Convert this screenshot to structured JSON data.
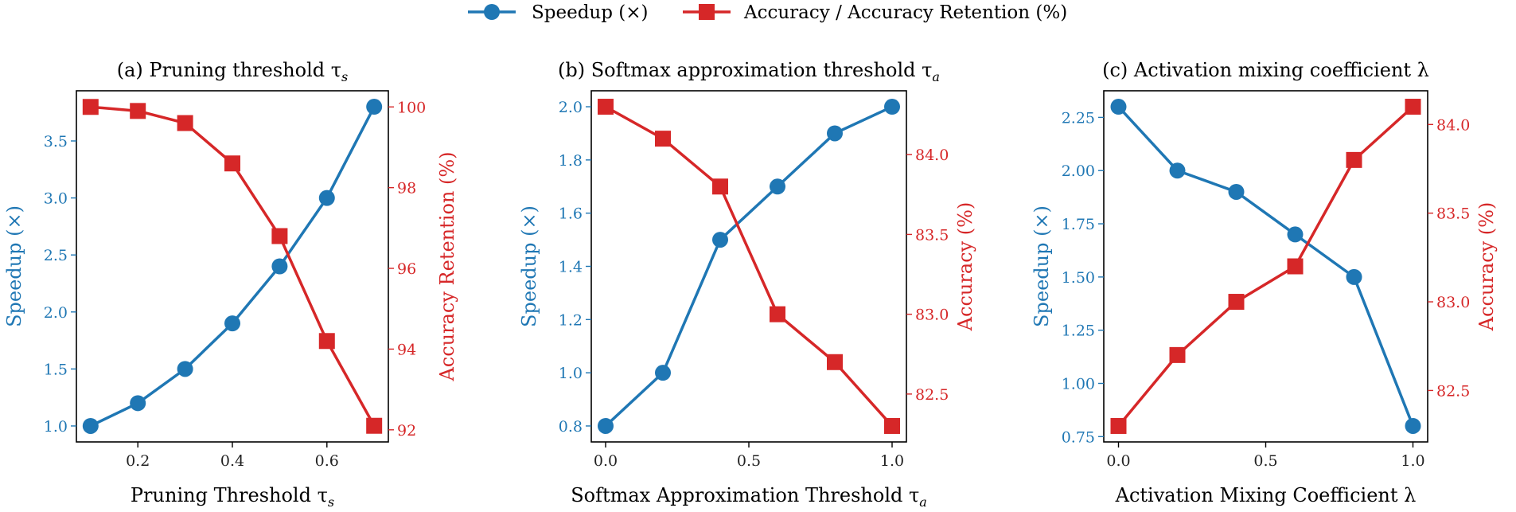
{
  "legend": {
    "entries": [
      {
        "label": "Speedup (×)",
        "color": "#1f77b4",
        "marker": "circle"
      },
      {
        "label": "Accuracy / Accuracy Retention (%)",
        "color": "#d62728",
        "marker": "square"
      }
    ]
  },
  "colors": {
    "speedup": "#1f77b4",
    "accuracy": "#d62728",
    "axis": "#000000"
  },
  "chart_data": [
    {
      "type": "line",
      "title": "(a) Pruning threshold τ",
      "title_sub": "s",
      "xlabel": "Pruning Threshold τ",
      "xlabel_sub": "s",
      "ylabel_left": "Speedup (×)",
      "ylabel_right": "Accuracy Retention (%)",
      "x": [
        0.1,
        0.2,
        0.3,
        0.4,
        0.5,
        0.6,
        0.7
      ],
      "series": [
        {
          "name": "Speedup (×)",
          "axis": "left",
          "values": [
            1.0,
            1.2,
            1.5,
            1.9,
            2.4,
            3.0,
            3.8
          ]
        },
        {
          "name": "Accuracy Retention (%)",
          "axis": "right",
          "values": [
            100.0,
            99.9,
            99.6,
            98.6,
            96.8,
            94.2,
            92.1
          ]
        }
      ],
      "xlim": [
        0.07,
        0.73
      ],
      "ylim_left": [
        0.86,
        3.94
      ],
      "ylim_right": [
        91.7,
        100.4
      ],
      "xticks": [
        {
          "v": 0.2,
          "label": "0.2"
        },
        {
          "v": 0.4,
          "label": "0.4"
        },
        {
          "v": 0.6,
          "label": "0.6"
        }
      ],
      "yticks_left": [
        {
          "v": 1.0,
          "label": "1.0"
        },
        {
          "v": 1.5,
          "label": "1.5"
        },
        {
          "v": 2.0,
          "label": "2.0"
        },
        {
          "v": 2.5,
          "label": "2.5"
        },
        {
          "v": 3.0,
          "label": "3.0"
        },
        {
          "v": 3.5,
          "label": "3.5"
        }
      ],
      "yticks_right": [
        {
          "v": 92,
          "label": "92"
        },
        {
          "v": 94,
          "label": "94"
        },
        {
          "v": 96,
          "label": "96"
        },
        {
          "v": 98,
          "label": "98"
        },
        {
          "v": 100,
          "label": "100"
        }
      ]
    },
    {
      "type": "line",
      "title": "(b) Softmax approximation threshold τ",
      "title_sub": "a",
      "xlabel": "Softmax Approximation Threshold τ",
      "xlabel_sub": "a",
      "ylabel_left": "Speedup (×)",
      "ylabel_right": "Accuracy (%)",
      "x": [
        0.0,
        0.2,
        0.4,
        0.6,
        0.8,
        1.0
      ],
      "series": [
        {
          "name": "Speedup (×)",
          "axis": "left",
          "values": [
            0.8,
            1.0,
            1.5,
            1.7,
            1.9,
            2.0
          ]
        },
        {
          "name": "Accuracy (%)",
          "axis": "right",
          "values": [
            84.3,
            84.1,
            83.8,
            83.0,
            82.7,
            82.3
          ]
        }
      ],
      "xlim": [
        -0.05,
        1.05
      ],
      "ylim_left": [
        0.74,
        2.06
      ],
      "ylim_right": [
        82.2,
        84.4
      ],
      "xticks": [
        {
          "v": 0.0,
          "label": "0.0"
        },
        {
          "v": 0.5,
          "label": "0.5"
        },
        {
          "v": 1.0,
          "label": "1.0"
        }
      ],
      "yticks_left": [
        {
          "v": 0.8,
          "label": "0.8"
        },
        {
          "v": 1.0,
          "label": "1.0"
        },
        {
          "v": 1.2,
          "label": "1.2"
        },
        {
          "v": 1.4,
          "label": "1.4"
        },
        {
          "v": 1.6,
          "label": "1.6"
        },
        {
          "v": 1.8,
          "label": "1.8"
        },
        {
          "v": 2.0,
          "label": "2.0"
        }
      ],
      "yticks_right": [
        {
          "v": 82.5,
          "label": "82.5"
        },
        {
          "v": 83.0,
          "label": "83.0"
        },
        {
          "v": 83.5,
          "label": "83.5"
        },
        {
          "v": 84.0,
          "label": "84.0"
        }
      ]
    },
    {
      "type": "line",
      "title": "(c) Activation mixing coefficient λ",
      "title_sub": "",
      "xlabel": "Activation Mixing Coefficient λ",
      "xlabel_sub": "",
      "ylabel_left": "Speedup (×)",
      "ylabel_right": "Accuracy (%)",
      "x": [
        0.0,
        0.2,
        0.4,
        0.6,
        0.8,
        1.0
      ],
      "series": [
        {
          "name": "Speedup (×)",
          "axis": "left",
          "values": [
            2.3,
            2.0,
            1.9,
            1.7,
            1.5,
            0.8
          ]
        },
        {
          "name": "Accuracy (%)",
          "axis": "right",
          "values": [
            82.3,
            82.7,
            83.0,
            83.2,
            83.8,
            84.1
          ]
        }
      ],
      "xlim": [
        -0.05,
        1.05
      ],
      "ylim_left": [
        0.725,
        2.375
      ],
      "ylim_right": [
        82.21,
        84.19
      ],
      "xticks": [
        {
          "v": 0.0,
          "label": "0.0"
        },
        {
          "v": 0.5,
          "label": "0.5"
        },
        {
          "v": 1.0,
          "label": "1.0"
        }
      ],
      "yticks_left": [
        {
          "v": 0.75,
          "label": "0.75"
        },
        {
          "v": 1.0,
          "label": "1.00"
        },
        {
          "v": 1.25,
          "label": "1.25"
        },
        {
          "v": 1.5,
          "label": "1.50"
        },
        {
          "v": 1.75,
          "label": "1.75"
        },
        {
          "v": 2.0,
          "label": "2.00"
        },
        {
          "v": 2.25,
          "label": "2.25"
        }
      ],
      "yticks_right": [
        {
          "v": 82.5,
          "label": "82.5"
        },
        {
          "v": 83.0,
          "label": "83.0"
        },
        {
          "v": 83.5,
          "label": "83.5"
        },
        {
          "v": 84.0,
          "label": "84.0"
        }
      ]
    }
  ]
}
